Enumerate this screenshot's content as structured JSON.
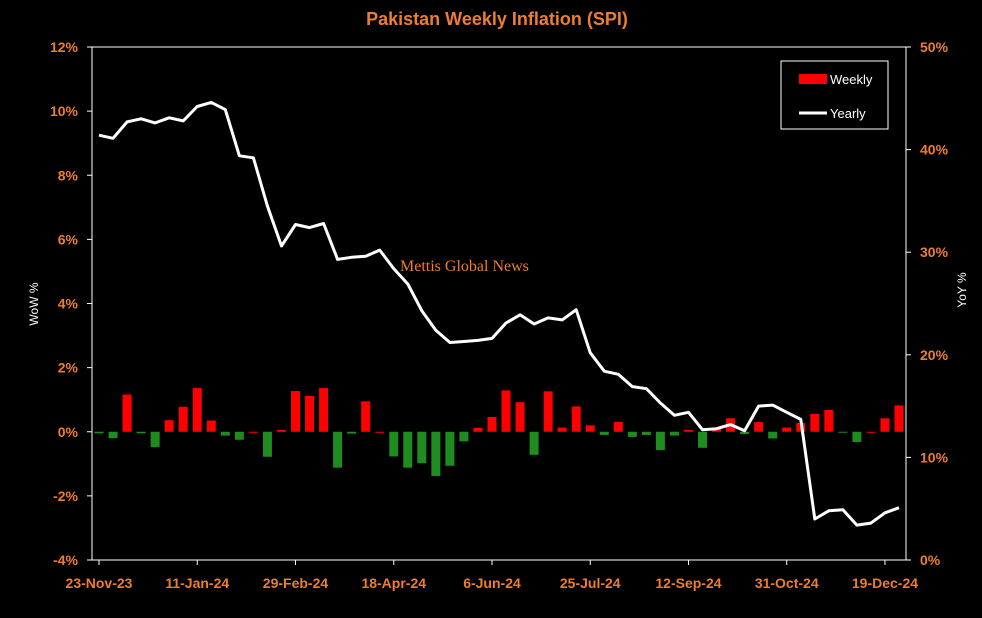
{
  "chart_data": {
    "type": "bar+line",
    "title": "Pakistan Weekly Inflation (SPI)",
    "ylabel_left": "WoW %",
    "ylabel_right": "YoY %",
    "ylim_left": [
      -4,
      12
    ],
    "ylim_right": [
      0,
      50
    ],
    "yticks_left": [
      "12%",
      "10%",
      "8%",
      "6%",
      "4%",
      "2%",
      "0%",
      "-2%",
      "-4%"
    ],
    "yticks_right": [
      "50%",
      "40%",
      "30%",
      "20%",
      "10%",
      "0%"
    ],
    "xtick_labels": [
      "23-Nov-23",
      "11-Jan-24",
      "29-Feb-24",
      "18-Apr-24",
      "6-Jun-24",
      "25-Jul-24",
      "12-Sep-24",
      "31-Oct-24",
      "19-Dec-24"
    ],
    "xtick_every": 7,
    "annotation": "Mettis Global News",
    "legend": {
      "position": "top-right",
      "items": [
        "Weekly",
        "Yearly"
      ]
    },
    "colors": {
      "positive": "#FF0000",
      "negative": "#1E8C1E",
      "line": "#FFFFFF",
      "text": "#ED7D31"
    },
    "series": [
      {
        "name": "Weekly",
        "kind": "bar",
        "axis": "left",
        "values": [
          -0.05,
          -0.2,
          1.16,
          -0.05,
          -0.48,
          0.36,
          0.78,
          1.36,
          0.35,
          -0.12,
          -0.25,
          0.0,
          -0.78,
          0.06,
          1.27,
          1.12,
          1.36,
          -1.12,
          -0.06,
          0.95,
          0.0,
          -0.77,
          -1.12,
          -0.98,
          -1.38,
          -1.06,
          -0.3,
          0.12,
          0.46,
          1.29,
          0.92,
          -0.72,
          1.26,
          0.13,
          0.79,
          0.2,
          -0.1,
          0.31,
          -0.16,
          -0.1,
          -0.57,
          -0.12,
          0.06,
          -0.5,
          0.12,
          0.42,
          -0.07,
          0.3,
          -0.21,
          0.13,
          0.27,
          0.56,
          0.68,
          -0.02,
          -0.32,
          0.0,
          0.42,
          0.82
        ]
      },
      {
        "name": "Yearly",
        "kind": "line",
        "axis": "right",
        "values": [
          41.4,
          41.1,
          42.7,
          43.0,
          42.6,
          43.1,
          42.8,
          44.2,
          44.6,
          43.9,
          39.4,
          39.2,
          34.5,
          30.6,
          32.7,
          32.4,
          32.8,
          29.3,
          29.5,
          29.6,
          30.2,
          28.4,
          26.9,
          24.3,
          22.4,
          21.2,
          21.3,
          21.4,
          21.6,
          23.1,
          23.9,
          23.0,
          23.6,
          23.4,
          24.4,
          20.2,
          18.4,
          18.1,
          16.9,
          16.7,
          15.3,
          14.1,
          14.4,
          12.7,
          12.8,
          13.2,
          12.6,
          15.0,
          15.1,
          14.4,
          13.7,
          4.0,
          4.8,
          4.9,
          3.4,
          3.6,
          4.6,
          5.1
        ]
      }
    ]
  }
}
